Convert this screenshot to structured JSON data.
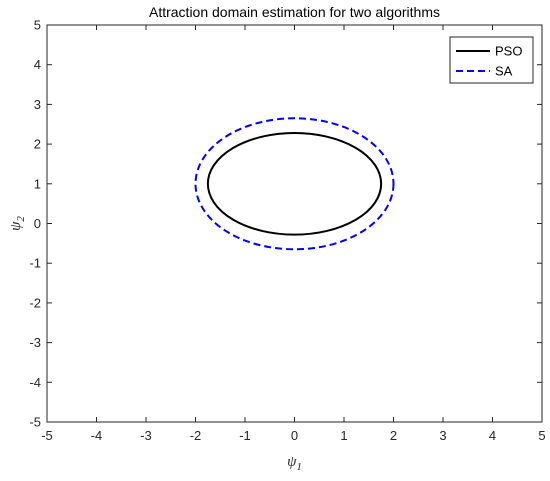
{
  "chart_data": {
    "type": "line",
    "title": "Attraction domain estimation for two algorithms",
    "xlabel": {
      "base": "ψ",
      "sub": "1"
    },
    "ylabel": {
      "base": "ψ",
      "sub": "2"
    },
    "xlim": [
      -5,
      5
    ],
    "ylim": [
      -5,
      5
    ],
    "xticks": [
      "-5",
      "-4",
      "-3",
      "-2",
      "-1",
      "0",
      "1",
      "2",
      "3",
      "4",
      "5"
    ],
    "yticks": [
      "-5",
      "-4",
      "-3",
      "-2",
      "-1",
      "0",
      "1",
      "2",
      "3",
      "4",
      "5"
    ],
    "grid": false,
    "legend_position": "top-right",
    "series": [
      {
        "name": "PSO",
        "shape": "ellipse",
        "center": [
          0,
          1
        ],
        "semi_axes": [
          1.75,
          1.28
        ],
        "color": "#000000",
        "line_style": "solid"
      },
      {
        "name": "SA",
        "shape": "ellipse",
        "center": [
          0,
          1
        ],
        "semi_axes": [
          2.0,
          1.65
        ],
        "color": "#0000ff",
        "line_style": "dashed"
      }
    ]
  }
}
